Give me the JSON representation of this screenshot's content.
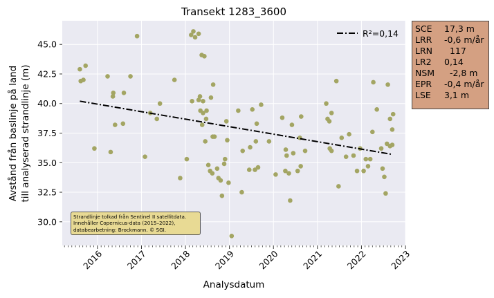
{
  "chart_data": {
    "type": "scatter",
    "title": "Transekt 1283_3600",
    "xlabel": "Analysdatum",
    "ylabel_lines": [
      "Avstånd från baslinje på land",
      "till analyserad strandlinje (m)"
    ],
    "xlim": [
      2015.2,
      2023.0
    ],
    "ylim": [
      28.0,
      47.0
    ],
    "x_ticks": [
      2016,
      2017,
      2018,
      2019,
      2020,
      2021,
      2022,
      2023
    ],
    "y_ticks": [
      30.0,
      32.5,
      35.0,
      37.5,
      40.0,
      42.5,
      45.0
    ],
    "y_tick_labels": [
      "30.0",
      "32.5",
      "35.0",
      "37.5",
      "40.0",
      "42.5",
      "45.0"
    ],
    "grid": true,
    "legend": {
      "position": "top-right",
      "entries": [
        "R²=0,14"
      ]
    },
    "trend": {
      "x": [
        2015.6,
        2022.7
      ],
      "y": [
        40.2,
        35.7
      ]
    },
    "colors": {
      "points": "#a3a563",
      "trend": "#000000",
      "plot_bg": "#eaeaf2",
      "grid": "#ffffff"
    },
    "points": [
      [
        2015.6,
        42.9
      ],
      [
        2015.62,
        41.9
      ],
      [
        2015.68,
        42.0
      ],
      [
        2015.73,
        43.2
      ],
      [
        2015.93,
        36.2
      ],
      [
        2016.23,
        42.3
      ],
      [
        2016.3,
        35.9
      ],
      [
        2016.35,
        40.6
      ],
      [
        2016.36,
        40.9
      ],
      [
        2016.4,
        38.2
      ],
      [
        2016.58,
        38.3
      ],
      [
        2016.6,
        40.9
      ],
      [
        2016.75,
        42.3
      ],
      [
        2016.9,
        45.7
      ],
      [
        2017.08,
        35.5
      ],
      [
        2017.2,
        39.2
      ],
      [
        2017.35,
        38.7
      ],
      [
        2017.42,
        40.0
      ],
      [
        2017.75,
        42.0
      ],
      [
        2017.88,
        33.7
      ],
      [
        2018.03,
        35.3
      ],
      [
        2018.13,
        45.8
      ],
      [
        2018.15,
        40.2
      ],
      [
        2018.18,
        46.1
      ],
      [
        2018.22,
        45.6
      ],
      [
        2018.3,
        45.9
      ],
      [
        2018.3,
        40.3
      ],
      [
        2018.33,
        40.6
      ],
      [
        2018.34,
        39.4
      ],
      [
        2018.37,
        44.1
      ],
      [
        2018.38,
        38.2
      ],
      [
        2018.4,
        40.2
      ],
      [
        2018.4,
        39.2
      ],
      [
        2018.43,
        44.0
      ],
      [
        2018.45,
        36.8
      ],
      [
        2018.47,
        38.7
      ],
      [
        2018.48,
        39.4
      ],
      [
        2018.52,
        34.8
      ],
      [
        2018.56,
        34.3
      ],
      [
        2018.58,
        40.5
      ],
      [
        2018.61,
        34.1
      ],
      [
        2018.62,
        37.2
      ],
      [
        2018.63,
        41.6
      ],
      [
        2018.66,
        37.2
      ],
      [
        2018.72,
        34.5
      ],
      [
        2018.75,
        33.7
      ],
      [
        2018.8,
        33.5
      ],
      [
        2018.83,
        32.2
      ],
      [
        2018.88,
        34.9
      ],
      [
        2018.9,
        35.3
      ],
      [
        2018.93,
        38.5
      ],
      [
        2018.95,
        36.9
      ],
      [
        2018.98,
        33.3
      ],
      [
        2019.05,
        28.8
      ],
      [
        2019.2,
        39.4
      ],
      [
        2019.28,
        32.5
      ],
      [
        2019.3,
        36.0
      ],
      [
        2019.45,
        34.4
      ],
      [
        2019.47,
        36.3
      ],
      [
        2019.52,
        39.5
      ],
      [
        2019.58,
        34.4
      ],
      [
        2019.6,
        36.8
      ],
      [
        2019.62,
        38.3
      ],
      [
        2019.65,
        34.6
      ],
      [
        2019.72,
        39.9
      ],
      [
        2019.9,
        36.8
      ],
      [
        2020.05,
        34.0
      ],
      [
        2020.2,
        38.8
      ],
      [
        2020.27,
        34.3
      ],
      [
        2020.28,
        36.1
      ],
      [
        2020.3,
        35.6
      ],
      [
        2020.35,
        34.1
      ],
      [
        2020.38,
        31.8
      ],
      [
        2020.42,
        38.2
      ],
      [
        2020.45,
        35.8
      ],
      [
        2020.55,
        34.3
      ],
      [
        2020.6,
        37.1
      ],
      [
        2020.62,
        34.7
      ],
      [
        2020.63,
        38.9
      ],
      [
        2020.72,
        36.0
      ],
      [
        2021.2,
        40.0
      ],
      [
        2021.23,
        38.7
      ],
      [
        2021.27,
        38.5
      ],
      [
        2021.28,
        36.2
      ],
      [
        2021.32,
        36.0
      ],
      [
        2021.32,
        39.2
      ],
      [
        2021.43,
        41.9
      ],
      [
        2021.48,
        33.0
      ],
      [
        2021.55,
        37.1
      ],
      [
        2021.65,
        35.5
      ],
      [
        2021.72,
        37.4
      ],
      [
        2021.82,
        35.6
      ],
      [
        2021.9,
        34.3
      ],
      [
        2021.97,
        36.2
      ],
      [
        2022.05,
        34.3
      ],
      [
        2022.1,
        35.3
      ],
      [
        2022.15,
        34.7
      ],
      [
        2022.2,
        35.3
      ],
      [
        2022.25,
        37.6
      ],
      [
        2022.27,
        41.8
      ],
      [
        2022.35,
        39.5
      ],
      [
        2022.45,
        36.2
      ],
      [
        2022.48,
        34.5
      ],
      [
        2022.52,
        33.8
      ],
      [
        2022.55,
        32.4
      ],
      [
        2022.58,
        36.6
      ],
      [
        2022.6,
        41.6
      ],
      [
        2022.65,
        36.4
      ],
      [
        2022.65,
        38.7
      ],
      [
        2022.7,
        37.8
      ],
      [
        2022.7,
        36.5
      ],
      [
        2022.72,
        39.1
      ]
    ]
  },
  "stats": [
    {
      "key": "SCE",
      "value": "17,3 m"
    },
    {
      "key": "LRR",
      "value": "-0,6 m/år"
    },
    {
      "key": "LRN",
      "value": "  117"
    },
    {
      "key": "LR2",
      "value": "0,14"
    },
    {
      "key": "NSM",
      "value": "  -2,8 m"
    },
    {
      "key": "EPR",
      "value": "-0,4 m/år"
    },
    {
      "key": "LSE",
      "value": "3,1 m"
    }
  ],
  "note": [
    "Strandlinje tolkad från Sentinel II satellitdata.",
    "Innehåller Copernicus-data (2015–2022),",
    "databearbetning: Brockmann. © SGI."
  ]
}
